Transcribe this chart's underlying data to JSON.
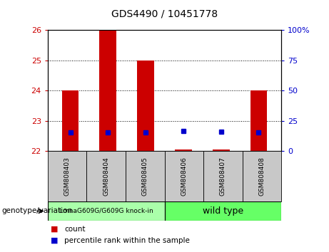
{
  "title": "GDS4490 / 10451778",
  "samples": [
    "GSM808403",
    "GSM808404",
    "GSM808405",
    "GSM808406",
    "GSM808407",
    "GSM808408"
  ],
  "bar_tops": [
    24.0,
    26.0,
    25.0,
    22.05,
    22.05,
    24.0
  ],
  "bar_bottom": 22.0,
  "percentile_y": [
    22.62,
    22.62,
    22.62,
    22.68,
    22.65,
    22.62
  ],
  "ylim_left": [
    22,
    26
  ],
  "ylim_right": [
    0,
    100
  ],
  "yticks_left": [
    22,
    23,
    24,
    25,
    26
  ],
  "yticks_right": [
    0,
    25,
    50,
    75,
    100
  ],
  "ytick_labels_right": [
    "0",
    "25",
    "50",
    "75",
    "100%"
  ],
  "bar_color": "#cc0000",
  "percentile_color": "#0000cc",
  "group1_label": "LmnaG609G/G609G knock-in",
  "group2_label": "wild type",
  "group1_color": "#aaffaa",
  "group2_color": "#66ff66",
  "legend_count_label": "count",
  "legend_pct_label": "percentile rank within the sample",
  "genotype_label": "genotype/variation",
  "ylabel_left_color": "#cc0000",
  "ylabel_right_color": "#0000cc",
  "sample_box_color": "#c8c8c8",
  "title_fontsize": 10,
  "tick_fontsize": 8,
  "legend_fontsize": 7.5,
  "sample_fontsize": 6.5
}
